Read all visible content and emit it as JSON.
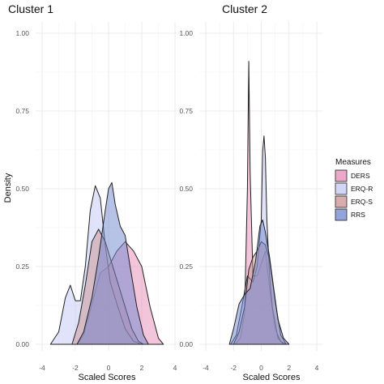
{
  "colors": {
    "DERS": "#e58bb5",
    "ERQ-R": "#c2c8f3",
    "ERQ-S": "#c99391",
    "RRS": "#6f86cf"
  },
  "chart_data": {
    "type": "area",
    "xlabel": "Scaled Scores",
    "ylabel": "Density",
    "legend": {
      "title": "Measures",
      "position": "right",
      "entries": [
        "DERS",
        "ERQ-R",
        "ERQ-S",
        "RRS"
      ]
    },
    "grid": true,
    "panels": [
      {
        "title": "Cluster 1",
        "xlim": [
          -4,
          4
        ],
        "ylim": [
          0,
          1.0
        ],
        "xticks": [
          "-4",
          "-2",
          "0",
          "2",
          "4"
        ],
        "yticks": [
          "0.00",
          "0.25",
          "0.50",
          "0.75",
          "1.00"
        ],
        "series": [
          {
            "name": "DERS",
            "x": [
              -1.9,
              -1.5,
              -1.0,
              -0.5,
              0.0,
              0.5,
              1.0,
              1.5,
              2.0,
              2.5,
              3.0,
              3.3
            ],
            "y": [
              0.0,
              0.03,
              0.13,
              0.23,
              0.25,
              0.3,
              0.33,
              0.3,
              0.25,
              0.12,
              0.02,
              0.0
            ]
          },
          {
            "name": "ERQ-R",
            "x": [
              -3.5,
              -3.0,
              -2.6,
              -2.3,
              -2.0,
              -1.7,
              -1.4,
              -1.1,
              -0.8,
              -0.5,
              -0.2,
              0.1,
              0.5,
              1.0,
              1.5,
              2.0
            ],
            "y": [
              0.0,
              0.04,
              0.15,
              0.19,
              0.14,
              0.14,
              0.25,
              0.43,
              0.51,
              0.47,
              0.32,
              0.2,
              0.13,
              0.05,
              0.01,
              0.0
            ]
          },
          {
            "name": "ERQ-S",
            "x": [
              -2.2,
              -1.8,
              -1.4,
              -1.0,
              -0.6,
              -0.2,
              0.2,
              0.6,
              1.0,
              1.4,
              1.8,
              2.1
            ],
            "y": [
              0.0,
              0.07,
              0.19,
              0.33,
              0.37,
              0.33,
              0.26,
              0.19,
              0.12,
              0.05,
              0.01,
              0.0
            ]
          },
          {
            "name": "RRS",
            "x": [
              -1.9,
              -1.5,
              -1.0,
              -0.6,
              -0.2,
              0.0,
              0.2,
              0.4,
              0.7,
              1.0,
              1.3,
              1.7,
              2.1,
              2.4
            ],
            "y": [
              0.0,
              0.04,
              0.15,
              0.28,
              0.43,
              0.5,
              0.52,
              0.45,
              0.38,
              0.35,
              0.25,
              0.12,
              0.03,
              0.0
            ]
          }
        ]
      },
      {
        "title": "Cluster 2",
        "xlim": [
          -4,
          4
        ],
        "ylim": [
          0,
          1.0
        ],
        "xticks": [
          "-4",
          "-2",
          "0",
          "2",
          "4"
        ],
        "yticks": [
          "0.00",
          "0.25",
          "0.50",
          "0.75",
          "1.00"
        ],
        "series": [
          {
            "name": "DERS",
            "x": [
              -1.9,
              -1.5,
              -1.2,
              -1.0,
              -0.9,
              -0.8,
              -0.6,
              -0.3,
              0.0,
              0.3,
              0.6,
              1.0,
              1.4,
              1.8
            ],
            "y": [
              0.0,
              0.02,
              0.1,
              0.5,
              0.91,
              0.55,
              0.22,
              0.22,
              0.26,
              0.3,
              0.18,
              0.05,
              0.01,
              0.0
            ]
          },
          {
            "name": "ERQ-R",
            "x": [
              -2.2,
              -1.8,
              -1.4,
              -1.0,
              -0.6,
              -0.3,
              0.0,
              0.1,
              0.2,
              0.3,
              0.4,
              0.6,
              0.8,
              1.2,
              1.6
            ],
            "y": [
              0.0,
              0.03,
              0.12,
              0.22,
              0.2,
              0.25,
              0.4,
              0.62,
              0.67,
              0.6,
              0.4,
              0.22,
              0.12,
              0.02,
              0.0
            ]
          },
          {
            "name": "ERQ-S",
            "x": [
              -2.0,
              -1.6,
              -1.2,
              -0.9,
              -0.6,
              -0.3,
              0.0,
              0.3,
              0.6,
              1.0,
              1.4,
              1.8
            ],
            "y": [
              0.0,
              0.04,
              0.12,
              0.24,
              0.28,
              0.3,
              0.33,
              0.32,
              0.27,
              0.14,
              0.03,
              0.0
            ]
          },
          {
            "name": "RRS",
            "x": [
              -2.3,
              -2.0,
              -1.6,
              -1.2,
              -0.8,
              -0.4,
              -0.1,
              0.1,
              0.3,
              0.6,
              0.9,
              1.2,
              1.6,
              2.0
            ],
            "y": [
              0.0,
              0.05,
              0.13,
              0.16,
              0.18,
              0.27,
              0.38,
              0.4,
              0.36,
              0.28,
              0.18,
              0.08,
              0.02,
              0.0
            ]
          }
        ]
      }
    ]
  }
}
